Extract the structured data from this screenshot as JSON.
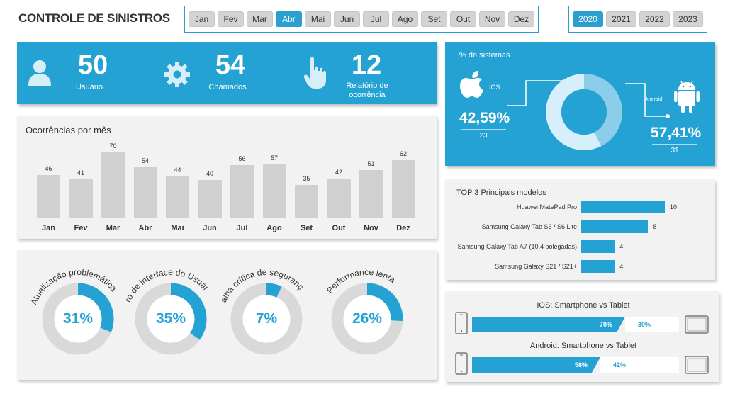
{
  "header": {
    "title": "CONTROLE DE SINISTROS",
    "months": [
      "Jan",
      "Fev",
      "Mar",
      "Abr",
      "Mai",
      "Jun",
      "Jul",
      "Ago",
      "Set",
      "Out",
      "Nov",
      "Dez"
    ],
    "selected_month": "Abr",
    "years": [
      "2020",
      "2021",
      "2022",
      "2023"
    ],
    "selected_year": "2020"
  },
  "kpis": [
    {
      "value": "50",
      "label": "Usuário",
      "icon": "user-icon"
    },
    {
      "value": "54",
      "label": "Chamados",
      "icon": "gear-icon"
    },
    {
      "value": "12",
      "label": "Relatório de ocorrência",
      "icon": "hand-pointer-icon"
    }
  ],
  "systems": {
    "title": "% de sistemas",
    "ios_label": "IOS",
    "ios_pct": "42,59%",
    "ios_count": "23",
    "android_label": "Android",
    "android_pct": "57,41%",
    "android_count": "31"
  },
  "monthly": {
    "title": "Ocorrências por mês"
  },
  "top_models": {
    "title": "TOP 3 Principais modelos"
  },
  "problems": [
    {
      "label": "Atualização problemática",
      "pct_text": "31%",
      "pct": 31
    },
    {
      "label": "Erro de interface do Usuário",
      "pct_text": "35%",
      "pct": 35
    },
    {
      "label": "Falha crítica de segurança",
      "pct_text": "7%",
      "pct": 7
    },
    {
      "label": "Performance lenta",
      "pct_text": "26%",
      "pct": 26
    }
  ],
  "comparisons": [
    {
      "title": "IOS: Smartphone vs Tablet",
      "a_text": "70%",
      "b_text": "30%",
      "a": 70
    },
    {
      "title": "Android: Smartphone vs Tablet",
      "a_text": "58%",
      "b_text": "42%",
      "a": 58
    }
  ],
  "colors": {
    "accent": "#24a2d4",
    "bar_gray": "#d0d0d0",
    "ring_gray": "#d9d9d9"
  },
  "chart_data": [
    {
      "type": "bar",
      "title": "Ocorrências por mês",
      "categories": [
        "Jan",
        "Fev",
        "Mar",
        "Abr",
        "Mai",
        "Jun",
        "Jul",
        "Ago",
        "Set",
        "Out",
        "Nov",
        "Dez"
      ],
      "values": [
        46,
        41,
        70,
        54,
        44,
        40,
        56,
        57,
        35,
        42,
        51,
        62
      ],
      "ylim": [
        0,
        70
      ]
    },
    {
      "type": "bar",
      "orientation": "horizontal",
      "title": "TOP 3 Principais modelos",
      "categories": [
        "Huawei MatePad Pro",
        "Samsung Galaxy Tab S6 / S6 Lite",
        "Samsung Galaxy Tab A7 (10,4 polegadas)",
        "Samsung Galaxy S21 / S21+"
      ],
      "values": [
        10,
        8,
        4,
        4
      ],
      "xlim": [
        0,
        10
      ]
    },
    {
      "type": "pie",
      "title": "% de sistemas",
      "categories": [
        "IOS",
        "Android"
      ],
      "values": [
        42.59,
        57.41
      ]
    }
  ]
}
